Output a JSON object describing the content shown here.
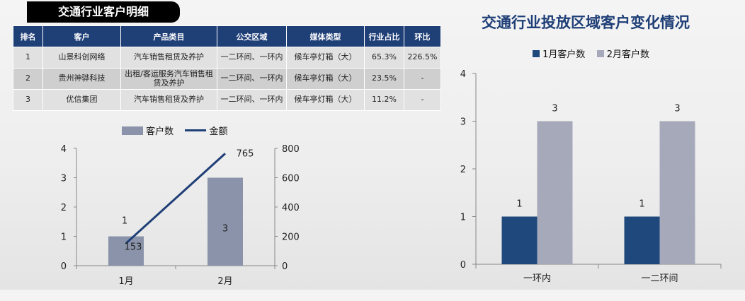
{
  "table_title": "交通行业客户明细",
  "table": {
    "headers": [
      "排名",
      "客户",
      "产品类目",
      "公交区域",
      "媒体类型",
      "行业占比",
      "环比"
    ],
    "rows": [
      [
        "1",
        "山景科创网络",
        "汽车销售租赁及养护",
        "一二环间、一环内",
        "候车亭灯箱（大）",
        "65.3%",
        "226.5%"
      ],
      [
        "2",
        "贵州神骅科技",
        "出租/客运服务汽车销售租赁及养护",
        "一二环间、一环内",
        "候车亭灯箱（大）",
        "23.5%",
        "-"
      ],
      [
        "3",
        "优信集团",
        "汽车销售租赁及养护",
        "一二环间、一环内",
        "候车亭灯箱（大）",
        "11.2%",
        "-"
      ]
    ]
  },
  "colors": {
    "header_bg": "#1f3f77",
    "row_light": "#e1e1e1",
    "row_dark": "#cfcfcf",
    "bar_gray": "#8a93a9",
    "line_navy": "#1f3f77",
    "jan_navy": "#1f497d",
    "feb_gray": "#a6a9b9"
  },
  "chart_data": [
    {
      "type": "bar",
      "title": "",
      "categories": [
        "1月",
        "2月"
      ],
      "series": [
        {
          "name": "客户数",
          "type": "bar",
          "axis": "left",
          "values": [
            1,
            3
          ],
          "data_labels": [
            "1",
            "3"
          ]
        },
        {
          "name": "金额",
          "type": "line",
          "axis": "right",
          "values": [
            153,
            765
          ],
          "data_labels": [
            "153",
            "765"
          ]
        }
      ],
      "y_left": {
        "range": [
          0,
          4
        ],
        "ticks": [
          "0",
          "1",
          "2",
          "3",
          "4"
        ]
      },
      "y_right": {
        "range": [
          0,
          800
        ],
        "ticks": [
          "0",
          "200",
          "400",
          "600",
          "800"
        ]
      },
      "legend": "top",
      "grid": false
    },
    {
      "type": "bar",
      "title": "交通行业投放区域客户变化情况",
      "categories": [
        "一环内",
        "一二环间"
      ],
      "series": [
        {
          "name": "1月客户数",
          "values": [
            1,
            1
          ]
        },
        {
          "name": "2月客户数",
          "values": [
            3,
            3
          ]
        }
      ],
      "y": {
        "range": [
          0,
          4
        ],
        "ticks": [
          "0",
          "1",
          "2",
          "3",
          "4"
        ]
      },
      "legend": "top",
      "grid": false
    }
  ]
}
